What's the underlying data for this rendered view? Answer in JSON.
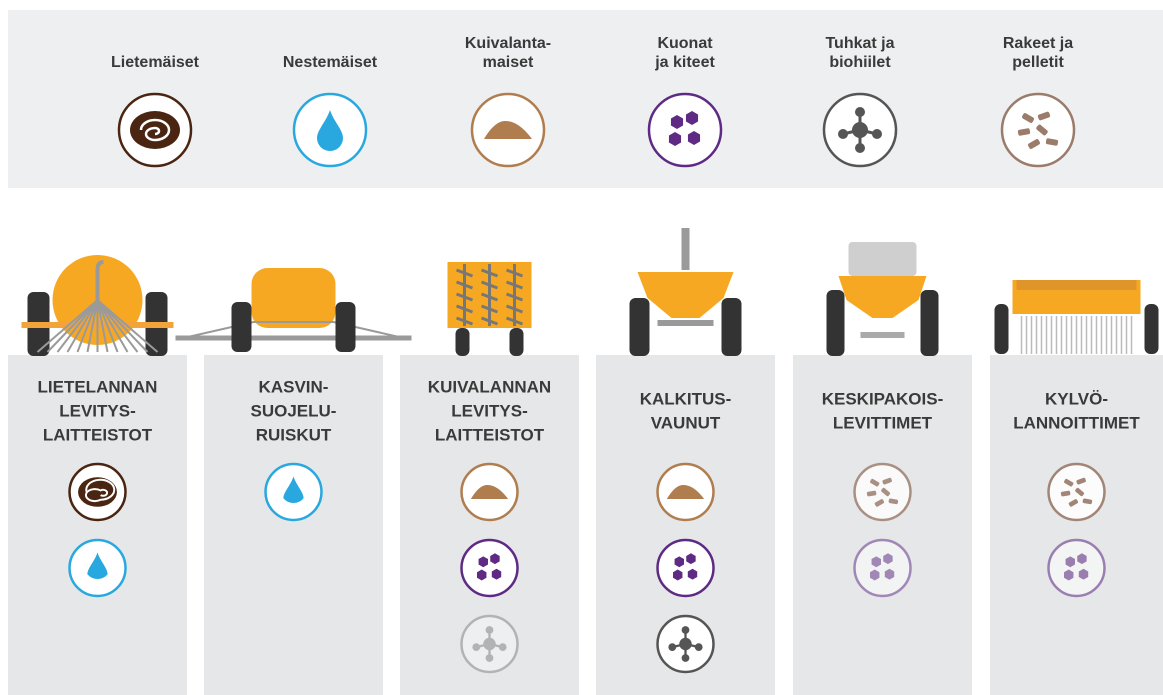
{
  "materials": [
    {
      "label": [
        "Lietemäiset"
      ]
    },
    {
      "label": [
        "Nestemäiset"
      ]
    },
    {
      "label": [
        "Kuivalanta-",
        "maiset"
      ]
    },
    {
      "label": [
        "Kuonat",
        "ja kiteet"
      ]
    },
    {
      "label": [
        "Tuhkat ja",
        "biohiilet"
      ]
    },
    {
      "label": [
        "Rakeet ja",
        "pelletit"
      ]
    }
  ],
  "machines": [
    {
      "label": [
        "LIETELANNAN",
        "LEVITYS-",
        "LAITTEISTOT"
      ]
    },
    {
      "label": [
        "KASVIN-",
        "SUOJELU-",
        "RUISKUT"
      ]
    },
    {
      "label": [
        "KUIVALANNAN",
        "LEVITYS-",
        "LAITTEISTOT"
      ]
    },
    {
      "label": [
        "KALKITUS-",
        "VAUNUT"
      ]
    },
    {
      "label": [
        "KESKIPAKOIS-",
        "LEVITTIMET"
      ]
    },
    {
      "label": [
        "KYLVÖ-",
        "LANNOITTIMET"
      ]
    }
  ]
}
